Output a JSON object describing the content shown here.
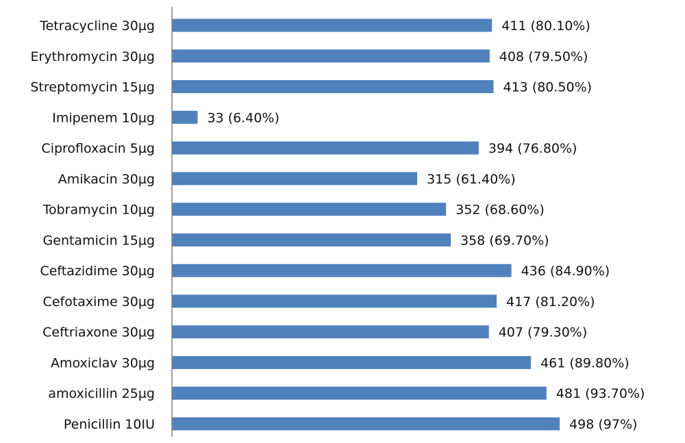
{
  "chart_data": {
    "type": "bar",
    "orientation": "horizontal",
    "title": "",
    "xlabel": "",
    "ylabel": "",
    "grid": false,
    "legend": "none",
    "bar_color": "#4F81BD",
    "axis_color": "#808080",
    "categories": [
      "Tetracycline 30µg",
      "Erythromycin 30µg",
      "Streptomycin 15µg",
      "Imipenem 10µg",
      "Ciprofloxacin 5µg",
      "Amikacin 30µg",
      "Tobramycin 10µg",
      "Gentamicin 15µg",
      "Ceftazidime 30µg",
      "Cefotaxime 30µg",
      "Ceftriaxone 30µg",
      "Amoxiclav 30µg",
      "amoxicillin 25µg",
      "Penicillin 10IU"
    ],
    "values": [
      411,
      408,
      413,
      33,
      394,
      315,
      352,
      358,
      436,
      417,
      407,
      461,
      481,
      498
    ],
    "data_labels": [
      "411 (80.10%)",
      "408 (79.50%)",
      "413 (80.50%)",
      "33 (6.40%)",
      "394 (76.80%)",
      "315 (61.40%)",
      "352 (68.60%)",
      "358 (69.70%)",
      "436 (84.90%)",
      "417 (81.20%)",
      "407 (79.30%)",
      "461 (89.80%)",
      "481 (93.70%)",
      "498 (97%)"
    ],
    "xlim": [
      0,
      519
    ]
  }
}
